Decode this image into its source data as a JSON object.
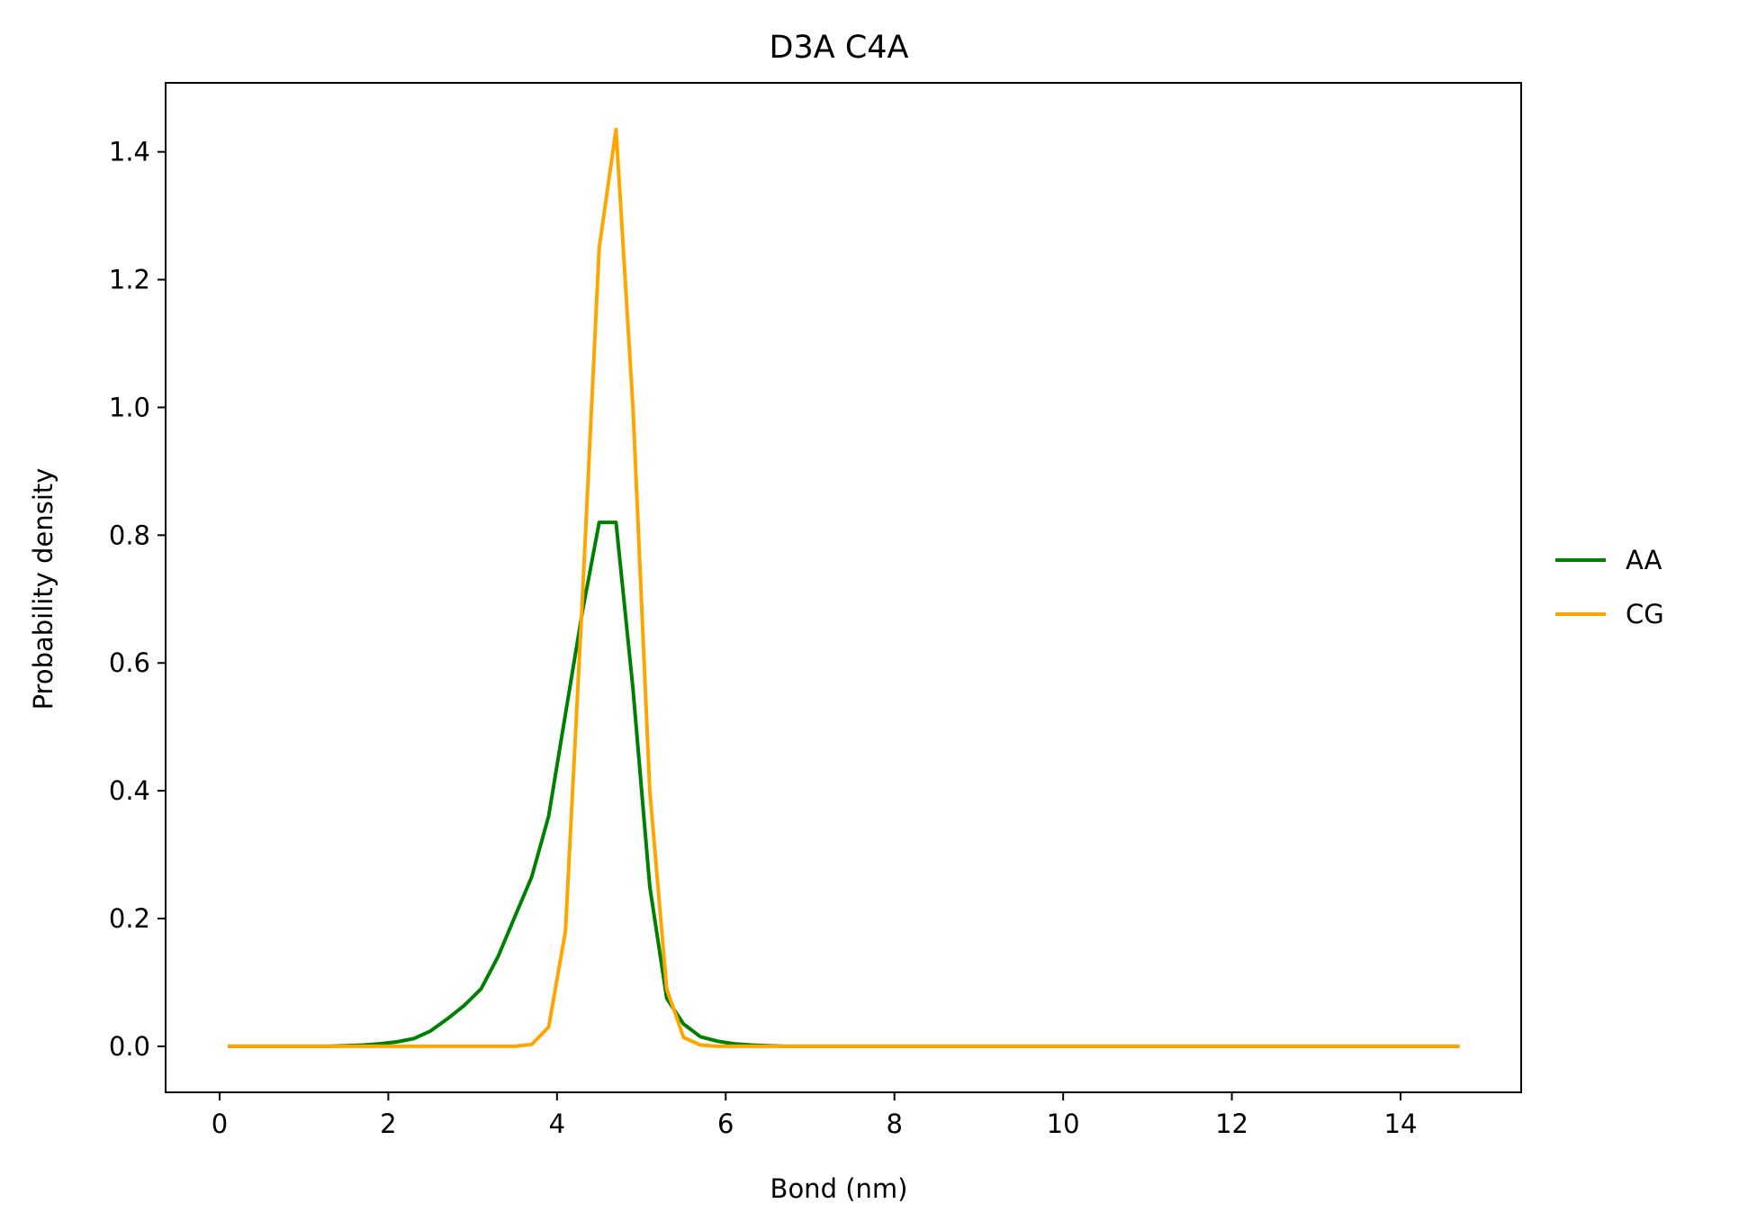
{
  "chart_data": {
    "type": "line",
    "title": "D3A C4A",
    "xlabel": "Bond (nm)",
    "ylabel": "Probability density",
    "xlim": [
      -0.64,
      15.43
    ],
    "ylim": [
      -0.072,
      1.508
    ],
    "xticks": [
      0,
      2,
      4,
      6,
      8,
      10,
      12,
      14
    ],
    "xtick_labels": [
      "0",
      "2",
      "4",
      "6",
      "8",
      "10",
      "12",
      "14"
    ],
    "yticks": [
      0.0,
      0.2,
      0.4,
      0.6,
      0.8,
      1.0,
      1.2,
      1.4
    ],
    "ytick_labels": [
      "0.0",
      "0.2",
      "0.4",
      "0.6",
      "0.8",
      "1.0",
      "1.2",
      "1.4"
    ],
    "grid": false,
    "legend_position": "outside-right",
    "series": [
      {
        "name": "AA",
        "color": "#008000",
        "x": [
          0.1,
          0.3,
          0.5,
          0.7,
          0.9,
          1.1,
          1.3,
          1.5,
          1.7,
          1.9,
          2.1,
          2.3,
          2.5,
          2.7,
          2.9,
          3.1,
          3.3,
          3.5,
          3.7,
          3.9,
          4.1,
          4.3,
          4.5,
          4.7,
          4.9,
          5.1,
          5.3,
          5.5,
          5.7,
          5.9,
          6.1,
          6.3,
          6.5,
          6.7,
          7.0,
          8.0,
          9.0,
          10.0,
          11.0,
          12.0,
          13.0,
          14.0,
          14.7
        ],
        "y": [
          0.0,
          0.0,
          0.0,
          0.0,
          0.0,
          0.0,
          0.0,
          0.001,
          0.002,
          0.004,
          0.007,
          0.012,
          0.024,
          0.043,
          0.064,
          0.09,
          0.14,
          0.203,
          0.265,
          0.36,
          0.52,
          0.68,
          0.82,
          0.82,
          0.56,
          0.25,
          0.075,
          0.035,
          0.015,
          0.008,
          0.004,
          0.002,
          0.001,
          0.0,
          0.0,
          0.0,
          0.0,
          0.0,
          0.0,
          0.0,
          0.0,
          0.0,
          0.0
        ]
      },
      {
        "name": "CG",
        "color": "#ffa500",
        "x": [
          0.1,
          1.0,
          2.0,
          3.0,
          3.5,
          3.7,
          3.9,
          4.1,
          4.3,
          4.5,
          4.7,
          4.9,
          5.1,
          5.3,
          5.5,
          5.7,
          5.9,
          6.1,
          7.0,
          8.0,
          10.0,
          12.0,
          14.0,
          14.7
        ],
        "y": [
          0.0,
          0.0,
          0.0,
          0.0,
          0.0,
          0.003,
          0.03,
          0.18,
          0.7,
          1.25,
          1.435,
          1.0,
          0.4,
          0.09,
          0.014,
          0.002,
          0.0,
          0.0,
          0.0,
          0.0,
          0.0,
          0.0,
          0.0,
          0.0
        ]
      }
    ]
  }
}
